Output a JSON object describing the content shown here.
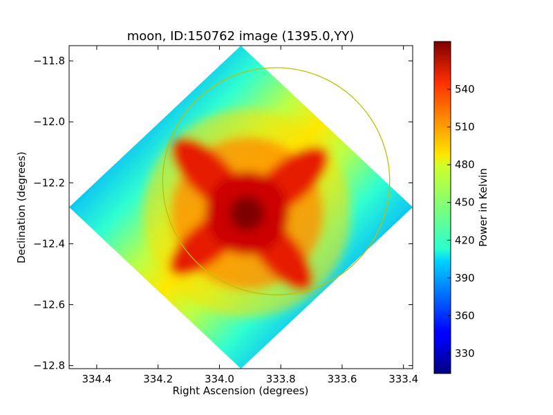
{
  "chart_data": {
    "type": "heatmap",
    "title": "moon, ID:150762 image (1395.0,YY)",
    "xlabel": "Right Ascension (degrees)",
    "ylabel": "Declination (degrees)",
    "xlim": [
      334.49,
      333.37
    ],
    "ylim": [
      -12.81,
      -11.75
    ],
    "x_ticks": [
      334.4,
      334.2,
      334.0,
      333.8,
      333.6,
      333.4
    ],
    "x_tick_labels": [
      "334.4",
      "334.2",
      "334.0",
      "333.8",
      "333.6",
      "333.4"
    ],
    "y_ticks": [
      -11.8,
      -12.0,
      -12.2,
      -12.4,
      -12.6,
      -12.8
    ],
    "y_tick_labels": [
      "−11.8",
      "−12.0",
      "−12.2",
      "−12.4",
      "−12.6",
      "−12.8"
    ],
    "colorbar": {
      "label": "Power in Kelvin",
      "range": [
        314,
        578
      ],
      "ticks": [
        330,
        360,
        390,
        420,
        450,
        480,
        510,
        540
      ],
      "tick_labels": [
        "330",
        "360",
        "390",
        "420",
        "450",
        "480",
        "510",
        "540"
      ],
      "colormap": "jet"
    },
    "image_footprint": {
      "shape": "diamond",
      "corners": [
        {
          "ra": 333.93,
          "dec": -11.75
        },
        {
          "ra": 333.37,
          "dec": -12.28
        },
        {
          "ra": 333.93,
          "dec": -12.81
        },
        {
          "ra": 334.49,
          "dec": -12.28
        }
      ]
    },
    "peak": {
      "ra": 333.91,
      "dec": -12.3,
      "value": 578
    },
    "overlay_circle": {
      "center_ra": 333.815,
      "center_dec": -12.195,
      "radius_deg": 0.37,
      "color": "#bfbf00"
    }
  }
}
